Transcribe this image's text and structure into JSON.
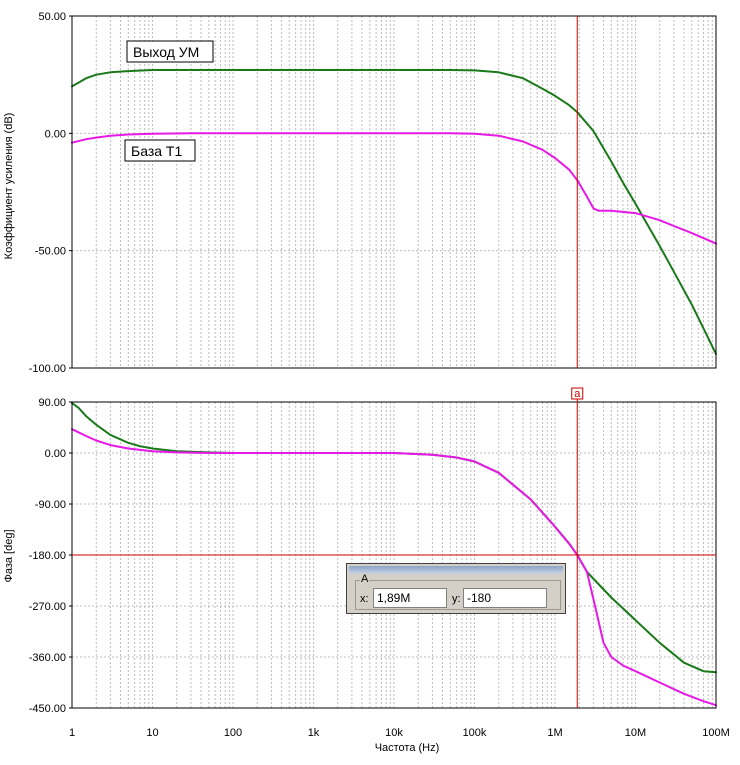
{
  "colors": {
    "green_series": "#1a7a1a",
    "magenta_series": "#e619e6",
    "cursor": "#cc0000",
    "grid": "#bdbdbd"
  },
  "chart_data": [
    {
      "type": "line",
      "xlabel": "",
      "ylabel": "Коэффициент усиления (dB)",
      "x_scale": "log",
      "xlim": [
        1,
        100000000
      ],
      "ylim": [
        -100,
        50
      ],
      "y_ticks": [
        50,
        0,
        -50,
        -100
      ],
      "y_tick_labels": [
        "50.00",
        "0.00",
        "-50.00",
        "-100.00"
      ],
      "grid": true,
      "series": [
        {
          "name": "Выход УМ",
          "color": "#1a7a1a",
          "x": [
            1,
            1.5,
            2,
            3,
            5,
            10,
            30,
            100,
            1000,
            10000,
            50000,
            100000,
            200000,
            400000,
            700000,
            1000000,
            1500000,
            1890000,
            3000000,
            5000000,
            7000000,
            10000000,
            20000000,
            30000000,
            50000000,
            100000000
          ],
          "y": [
            20,
            23.5,
            25,
            26,
            26.5,
            27,
            27,
            27,
            27,
            27,
            27,
            26.8,
            26,
            23.5,
            19,
            16,
            12,
            9,
            1,
            -12,
            -21,
            -30,
            -48,
            -59,
            -73,
            -94
          ]
        },
        {
          "name": "База Т1",
          "color": "#e619e6",
          "x": [
            1,
            1.5,
            2,
            3,
            5,
            10,
            30,
            100,
            1000,
            10000,
            50000,
            100000,
            200000,
            400000,
            700000,
            1000000,
            1500000,
            1890000,
            2500000,
            3000000,
            3500000,
            5000000,
            10000000,
            20000000,
            30000000,
            50000000,
            100000000
          ],
          "y": [
            -4,
            -2.5,
            -1.8,
            -1,
            -0.5,
            -0.2,
            0,
            0,
            0,
            0,
            0,
            -0.2,
            -1,
            -3.5,
            -7,
            -10.5,
            -15.5,
            -20,
            -27,
            -32,
            -33,
            -33,
            -34,
            -37,
            -39.5,
            -42.5,
            -47
          ]
        }
      ],
      "annotations": [
        "Выход УМ",
        "База Т1"
      ],
      "cursor": {
        "x": 1890000,
        "label": "a"
      }
    },
    {
      "type": "line",
      "xlabel": "Частота (Hz)",
      "ylabel": "Фаза [deg]",
      "x_scale": "log",
      "xlim": [
        1,
        100000000
      ],
      "ylim": [
        -450,
        90
      ],
      "y_ticks": [
        90,
        0,
        -90,
        -180,
        -270,
        -360,
        -450
      ],
      "y_tick_labels": [
        "90.00",
        "0.00",
        "-90.00",
        "-180.00",
        "-270.00",
        "-360.00",
        "-450.00"
      ],
      "x_ticks": [
        1,
        10,
        100,
        1000,
        10000,
        100000,
        1000000,
        10000000,
        100000000
      ],
      "x_tick_labels": [
        "1",
        "10",
        "100",
        "1k",
        "10k",
        "100k",
        "1M",
        "10M",
        "100M"
      ],
      "grid": true,
      "series": [
        {
          "color": "#1a7a1a",
          "x": [
            1,
            1.2,
            1.5,
            2,
            3,
            5,
            7,
            10,
            20,
            50,
            100,
            1000,
            10000,
            30000,
            60000,
            100000,
            200000,
            500000,
            1000000,
            1500000,
            1890000,
            2500000,
            5000000,
            10000000,
            20000000,
            40000000,
            70000000,
            100000000
          ],
          "y": [
            88,
            80,
            65,
            50,
            32,
            18,
            12,
            8,
            3,
            1,
            0,
            0,
            0,
            -3,
            -8,
            -15,
            -35,
            -82,
            -130,
            -160,
            -180,
            -210,
            -255,
            -295,
            -335,
            -370,
            -385,
            -387
          ]
        },
        {
          "color": "#e619e6",
          "x": [
            1,
            1.5,
            2,
            3,
            5,
            10,
            20,
            50,
            100,
            1000,
            10000,
            30000,
            60000,
            100000,
            200000,
            500000,
            1000000,
            1500000,
            1890000,
            2500000,
            3200000,
            4000000,
            5000000,
            7000000,
            10000000,
            20000000,
            40000000,
            70000000,
            100000000
          ],
          "y": [
            42,
            30,
            22,
            14,
            8,
            3,
            1,
            0,
            0,
            0,
            0,
            -3,
            -8,
            -15,
            -35,
            -82,
            -130,
            -160,
            -180,
            -210,
            -275,
            -335,
            -360,
            -375,
            -385,
            -405,
            -425,
            -438,
            -445
          ]
        }
      ],
      "cursor": {
        "x": 1890000,
        "y": -180
      }
    }
  ],
  "cursor_readout": {
    "group_title": "A",
    "x_label": "x:",
    "x_value": "1,89M",
    "y_label": "y:",
    "y_value": "-180"
  }
}
